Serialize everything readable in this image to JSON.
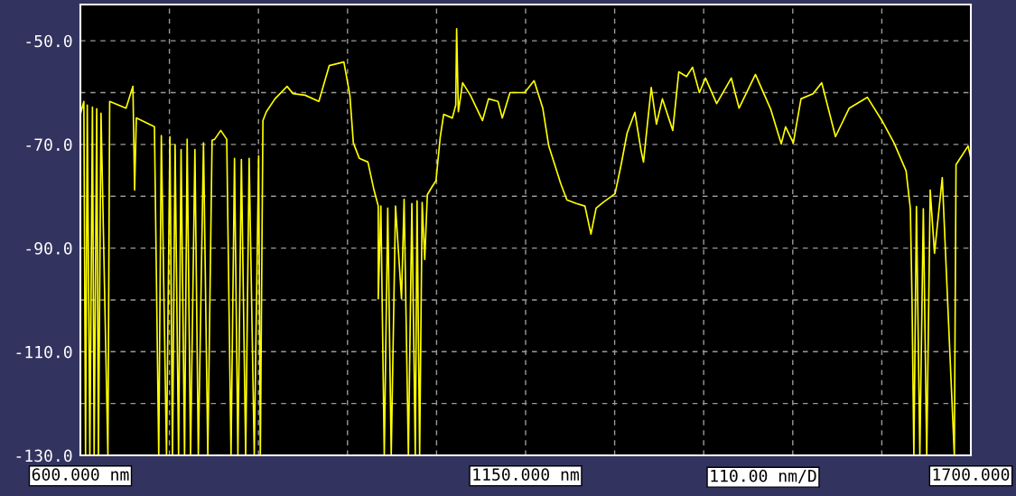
{
  "chart_data": {
    "type": "line",
    "x": [
      600,
      600,
      604.3,
      606.4,
      608.5,
      611.7,
      614.9,
      617.0,
      620.2,
      622.3,
      625.5,
      634.0,
      636.2,
      656.4,
      664.9,
      667.0,
      669.1,
      691.5,
      696.8,
      700,
      706.4,
      710.6,
      713.8,
      717.0,
      721.3,
      724.4,
      728.7,
      731.9,
      736.1,
      741.5,
      745.7,
      752.1,
      757.4,
      762.7,
      765.9,
      773.4,
      780.8,
      786.1,
      790.4,
      794.6,
      798.9,
      804.2,
      808.5,
      814.8,
      820.2,
      822.3,
      825.5,
      829.7,
      840.4,
      855.3,
      862.7,
      877.6,
      894.6,
      907.4,
      925.5,
      932.9,
      937.2,
      944.6,
      955.2,
      962.7,
      968.0,
      968.0,
      971.2,
      975.4,
      979.7,
      984.0,
      989.3,
      996.7,
      999.9,
      1005.2,
      1009.5,
      1013.7,
      1015.9,
      1019.1,
      1022.2,
      1025.4,
      1028.6,
      1033.9,
      1039.3,
      1044.6,
      1048.8,
      1059.5,
      1063.7,
      1064.8,
      1066.9,
      1072.2,
      1081.8,
      1096.7,
      1104.2,
      1115.9,
      1121.2,
      1130.7,
      1148.8,
      1160.5,
      1171.2,
      1178.6,
      1193.5,
      1201.0,
      1212.7,
      1223.3,
      1230.7,
      1237.1,
      1245.6,
      1260.5,
      1268.0,
      1275.4,
      1285.0,
      1292.4,
      1295.6,
      1305.2,
      1311.6,
      1319.0,
      1331.8,
      1339.2,
      1348.8,
      1356.2,
      1364.7,
      1372.2,
      1386.0,
      1404.1,
      1413.7,
      1433.9,
      1453.0,
      1465.8,
      1471.1,
      1480.7,
      1490.2,
      1505.1,
      1515.8,
      1532.8,
      1549.8,
      1572.1,
      1590.2,
      1605.1,
      1620.0,
      1625.3,
      1627.4,
      1629.6,
      1632.8,
      1637.0,
      1641.3,
      1645.5,
      1649.8,
      1655.1,
      1664.7,
      1679.6,
      1681.7,
      1696.6,
      1700
    ],
    "values": [
      -130,
      -64.2,
      -61.7,
      -130,
      -62.4,
      -130,
      -62.8,
      -130,
      -63.1,
      -130,
      -64.0,
      -130,
      -61.7,
      -63.0,
      -58.8,
      -78.8,
      -64.9,
      -66.6,
      -130,
      -68.3,
      -130,
      -68.5,
      -130,
      -70.1,
      -130,
      -71.0,
      -130,
      -69.0,
      -130,
      -71.0,
      -130,
      -69.7,
      -130,
      -69.2,
      -69.0,
      -67.3,
      -69.0,
      -130,
      -72.7,
      -130,
      -72.9,
      -130,
      -72.7,
      -130,
      -72.2,
      -130,
      -65.4,
      -63.7,
      -61.2,
      -58.8,
      -60.2,
      -60.5,
      -61.7,
      -54.8,
      -54.1,
      -60.5,
      -69.7,
      -72.7,
      -73.4,
      -78.8,
      -81.9,
      -99.8,
      -81.9,
      -130,
      -82.3,
      -130,
      -81.9,
      -99.8,
      -80.6,
      -130,
      -81.4,
      -130,
      -80.9,
      -130,
      -81.2,
      -92.2,
      -79.7,
      -78.3,
      -77.0,
      -68.5,
      -64.2,
      -64.9,
      -62.4,
      -47.7,
      -63.7,
      -58.1,
      -60.5,
      -65.4,
      -61.2,
      -61.7,
      -64.9,
      -60.0,
      -60.0,
      -57.7,
      -63.0,
      -70.3,
      -77.6,
      -80.7,
      -81.4,
      -81.9,
      -87.3,
      -82.3,
      -81.2,
      -79.5,
      -73.9,
      -67.8,
      -63.8,
      -71.0,
      -73.4,
      -59.0,
      -66.1,
      -61.2,
      -67.3,
      -56.0,
      -56.9,
      -55.1,
      -60.0,
      -57.2,
      -62.1,
      -57.2,
      -63.0,
      -56.5,
      -63.3,
      -69.9,
      -66.6,
      -69.7,
      -61.2,
      -60.2,
      -58.1,
      -68.5,
      -63.0,
      -60.9,
      -65.4,
      -69.7,
      -75.1,
      -82.4,
      -100.7,
      -130,
      -82.0,
      -130,
      -82.4,
      -130,
      -78.8,
      -91.0,
      -76.4,
      -130,
      -73.9,
      -70.3,
      -72.7
    ],
    "color": "#ffff00",
    "xlim": [
      600,
      1700
    ],
    "ylim": [
      -130,
      -43
    ],
    "xticks": [
      {
        "value": 600,
        "label": "600.000 nm"
      },
      {
        "value": 710,
        "label": null
      },
      {
        "value": 820,
        "label": null
      },
      {
        "value": 930,
        "label": null
      },
      {
        "value": 1040,
        "label": null
      },
      {
        "value": 1150,
        "label": "1150.000 nm"
      },
      {
        "value": 1260,
        "label": null
      },
      {
        "value": 1370,
        "label": null
      },
      {
        "value": 1480,
        "label": null
      },
      {
        "value": 1590,
        "label": null
      },
      {
        "value": 1700,
        "label": "1700.000"
      }
    ],
    "yticks": [
      {
        "value": -50,
        "label": "-50.0"
      },
      {
        "value": -60,
        "label": null
      },
      {
        "value": -70,
        "label": "-70.0"
      },
      {
        "value": -80,
        "label": null
      },
      {
        "value": -90,
        "label": "-90.0"
      },
      {
        "value": -100,
        "label": null
      },
      {
        "value": -110,
        "label": "-110.0"
      },
      {
        "value": -120,
        "label": null
      },
      {
        "value": -130,
        "label": "-130.0"
      }
    ],
    "grid": true,
    "annotations": [
      "110.00 nm/D"
    ]
  }
}
